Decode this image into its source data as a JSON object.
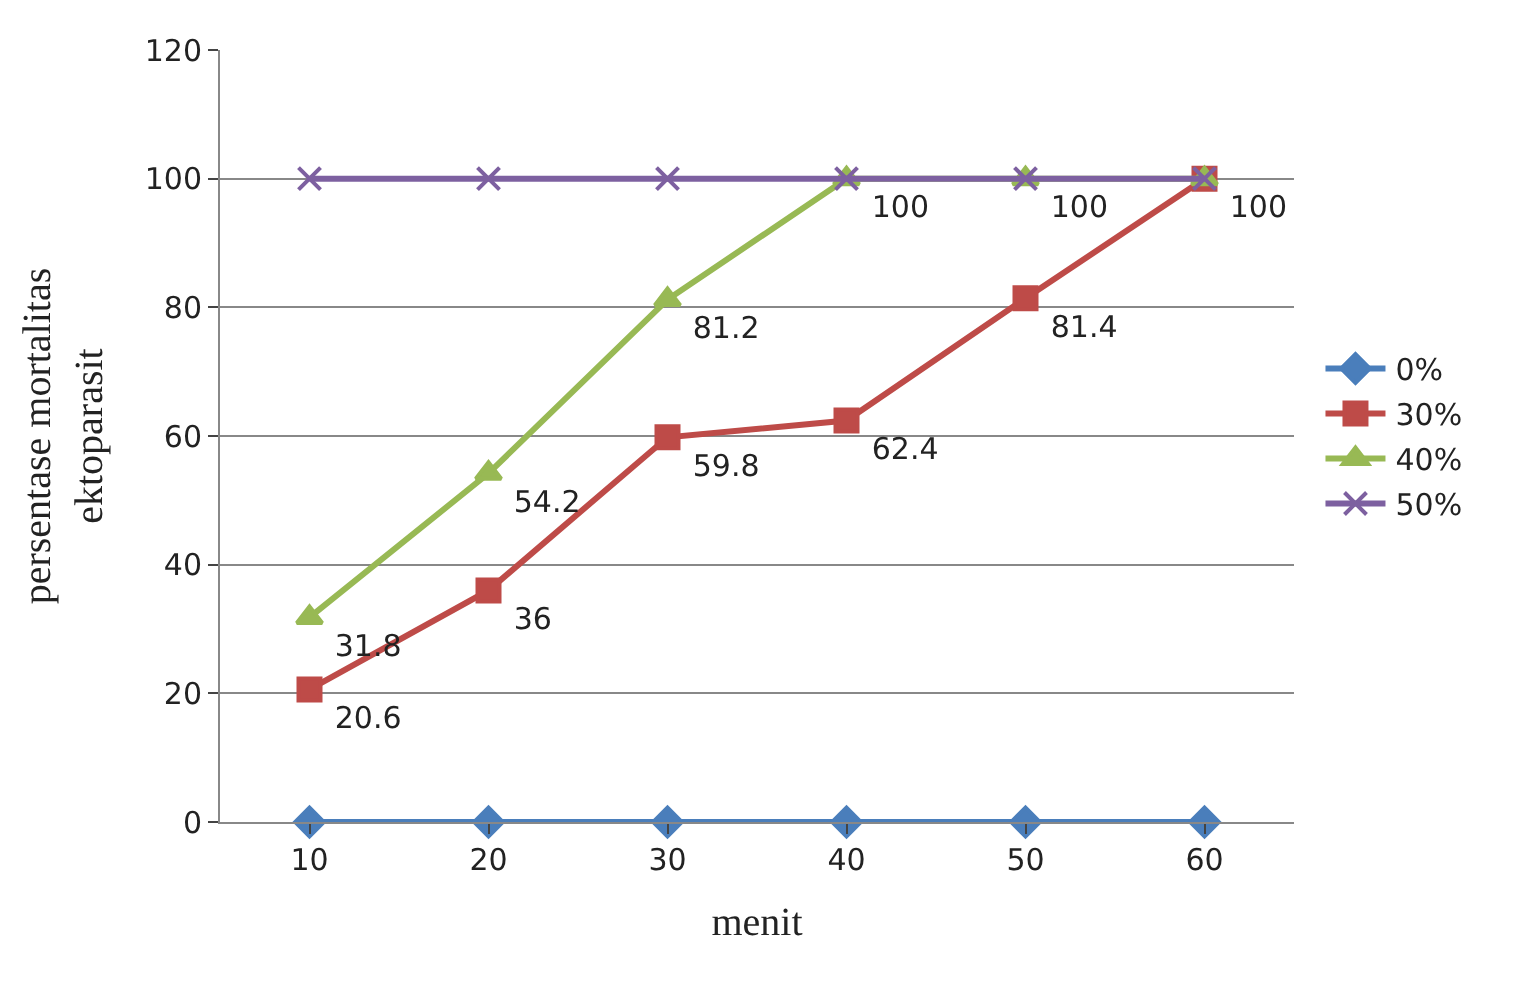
{
  "chart_data": {
    "type": "line",
    "xlabel": "menit",
    "ylabel": "persentase mortalitas ektoparasit",
    "categories": [
      "10",
      "20",
      "30",
      "40",
      "50",
      "60"
    ],
    "ylim": [
      0,
      120
    ],
    "yticks": [
      0,
      20,
      40,
      60,
      80,
      100,
      120
    ],
    "grid": "y",
    "legend": "right",
    "series": [
      {
        "name": "0%",
        "color": "#4a7ebb",
        "marker": "diamond",
        "values": [
          0,
          0,
          0,
          0,
          0,
          0
        ]
      },
      {
        "name": "30%",
        "color": "#be4b48",
        "marker": "square",
        "values": [
          20.6,
          36,
          59.8,
          62.4,
          81.4,
          100
        ],
        "value_labels": [
          "20.6",
          "36",
          "59.8",
          "62.4",
          "81.4",
          "100"
        ]
      },
      {
        "name": "40%",
        "color": "#98b954",
        "marker": "triangle",
        "values": [
          31.8,
          54.2,
          81.2,
          100,
          100,
          100
        ],
        "value_labels": [
          "31.8",
          "54.2",
          "81.2",
          "100",
          "100",
          null
        ]
      },
      {
        "name": "50%",
        "color": "#7d60a0",
        "marker": "cross",
        "values": [
          100,
          100,
          100,
          100,
          100,
          100
        ]
      }
    ]
  }
}
